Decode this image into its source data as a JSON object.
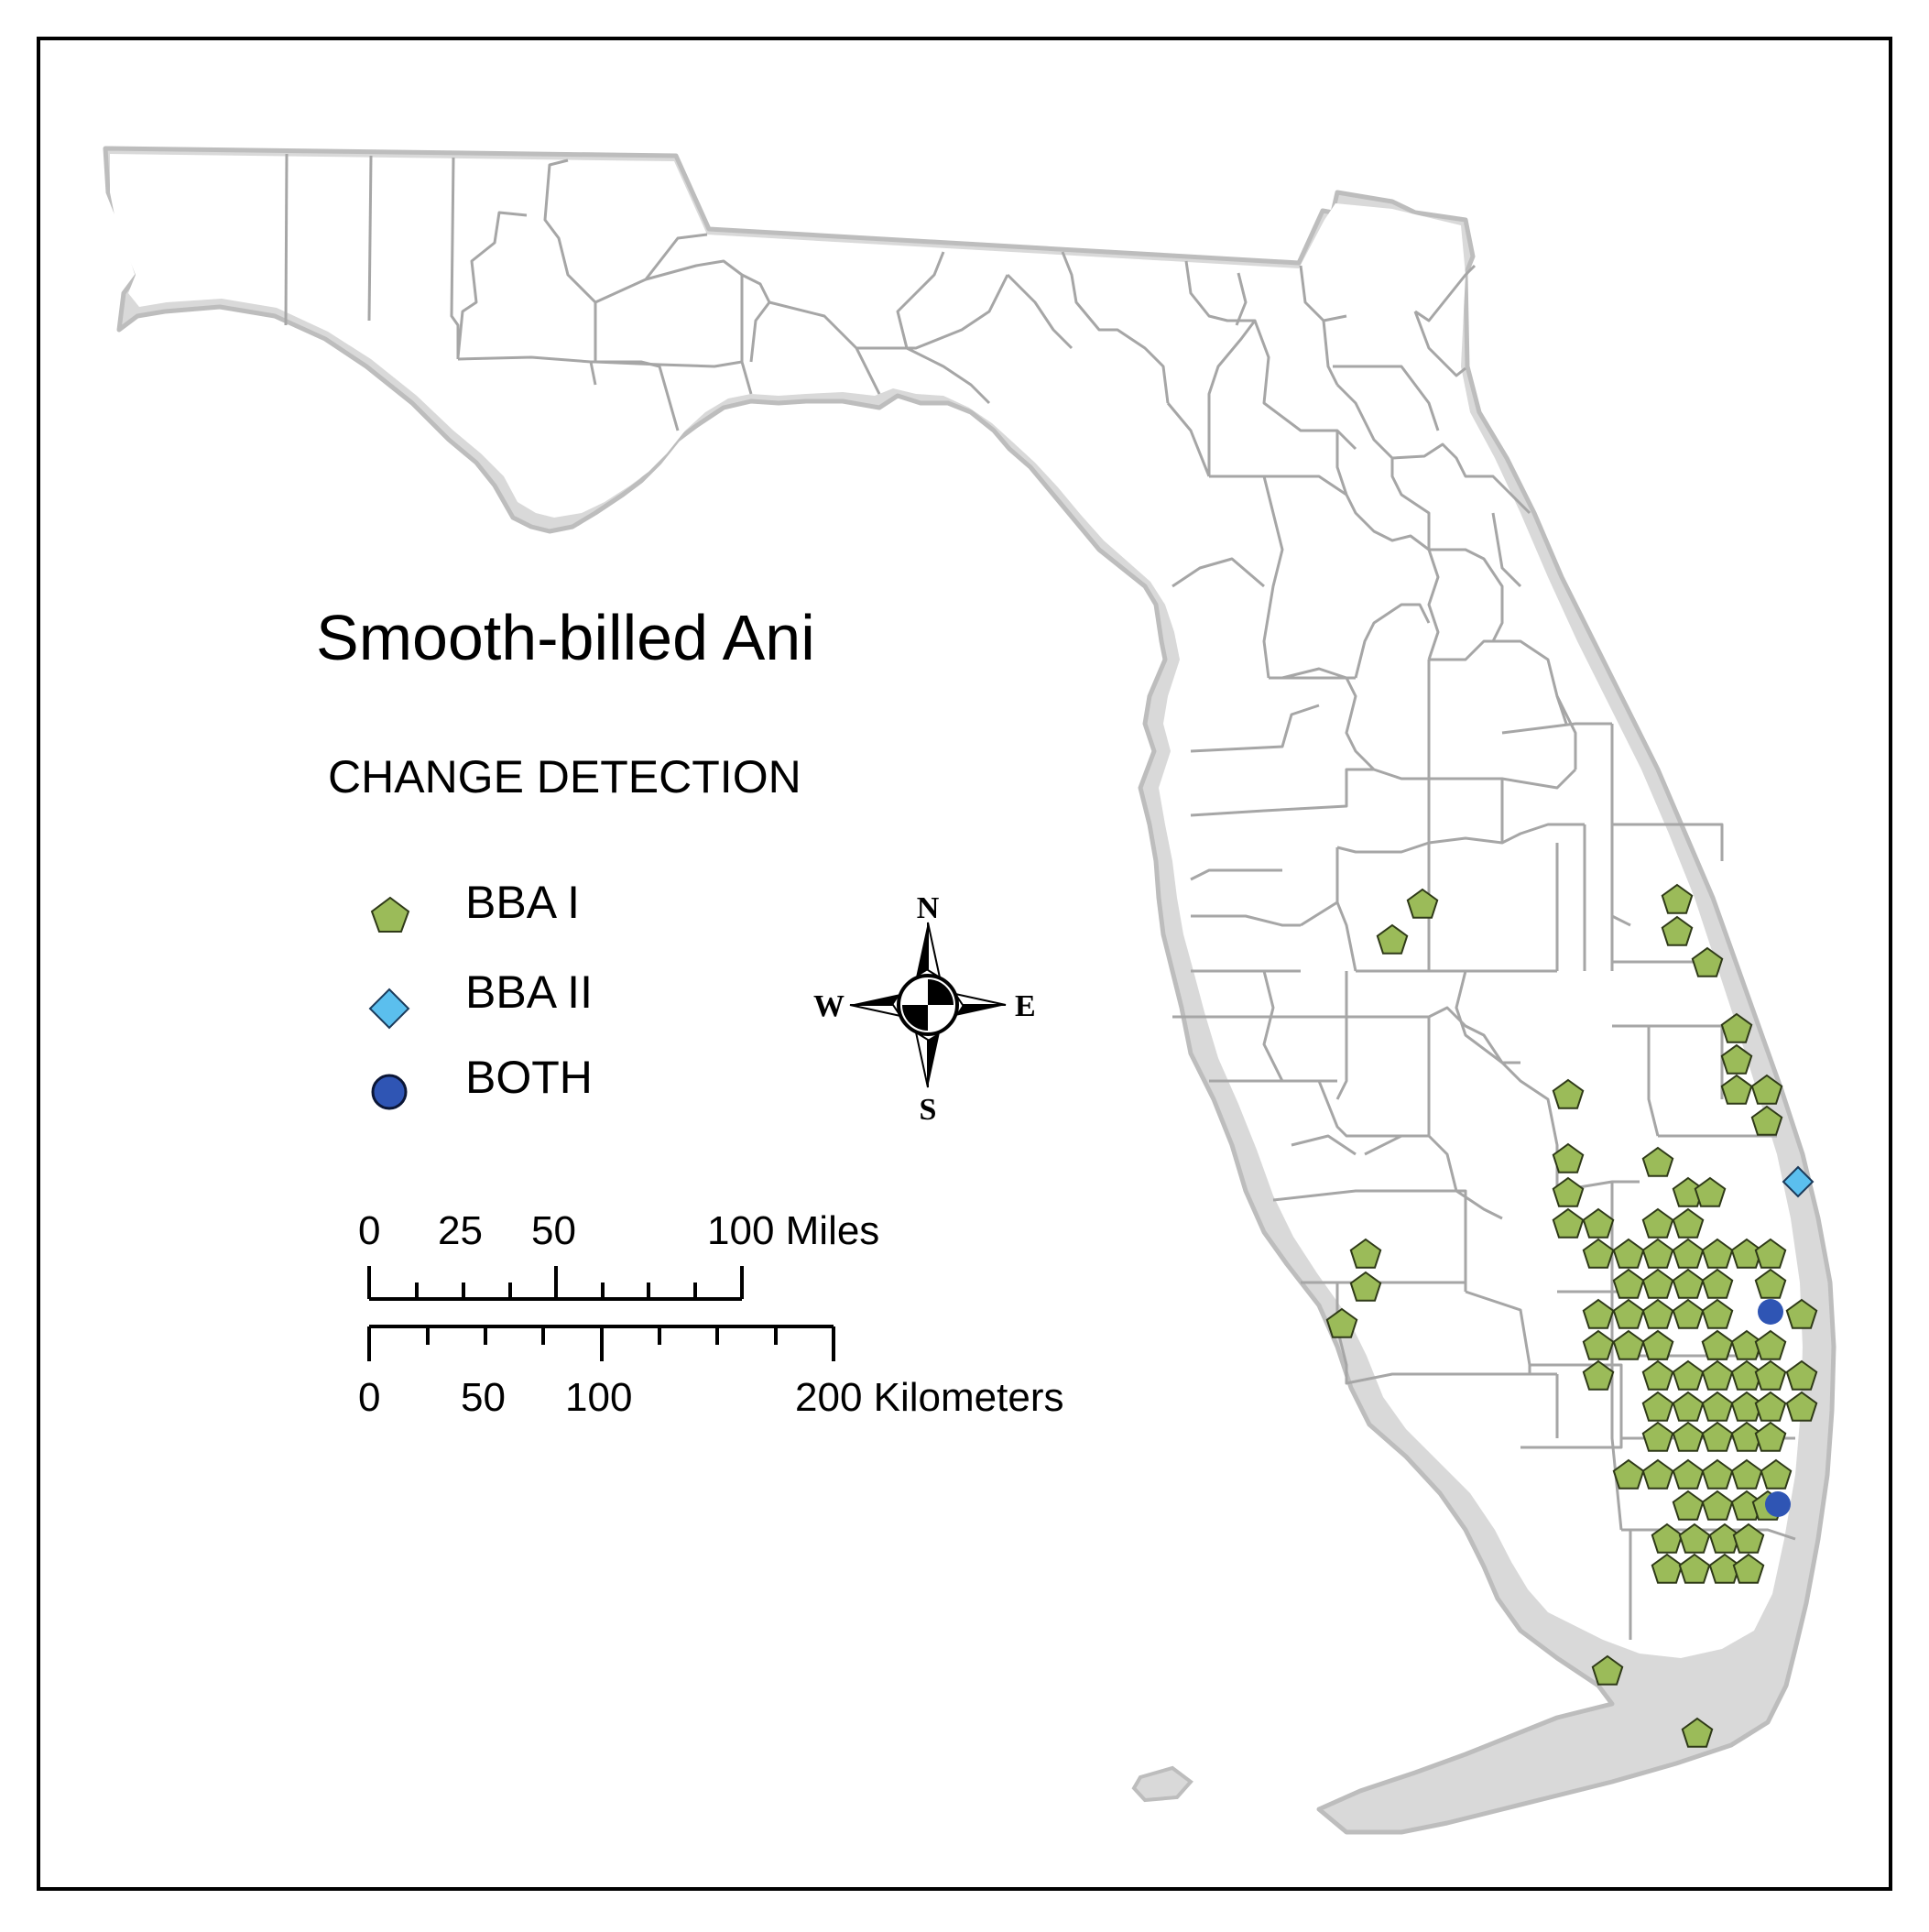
{
  "map": {
    "title": "Smooth-billed Ani",
    "subtitle": "CHANGE DETECTION",
    "colors": {
      "state_fill": "#ffffff",
      "coast_band": "#d9d9d9",
      "state_outline": "#bdbdbd",
      "county_line": "#9e9e9e",
      "frame": "#000000",
      "bba1": "#9bbb59",
      "bba2": "#5bbfee",
      "both": "#2f55b4"
    }
  },
  "legend": {
    "items": [
      {
        "key": "bba1",
        "label": "BBA I",
        "symbol": "green-pentagon-icon"
      },
      {
        "key": "bba2",
        "label": "BBA II",
        "symbol": "blue-diamond-icon"
      },
      {
        "key": "both",
        "label": "BOTH",
        "symbol": "navy-circle-icon"
      }
    ]
  },
  "scale_bar": {
    "miles": {
      "ticks": [
        "0",
        "25",
        "50",
        "100 Miles"
      ]
    },
    "kilometers": {
      "ticks": [
        "0",
        "50",
        "100",
        "200 Kilometers"
      ]
    }
  },
  "compass": {
    "n": "N",
    "s": "S",
    "e": "E",
    "w": "W"
  },
  "sightings": {
    "bba1_count": 104,
    "bba2_count": 1,
    "both_count": 2
  }
}
